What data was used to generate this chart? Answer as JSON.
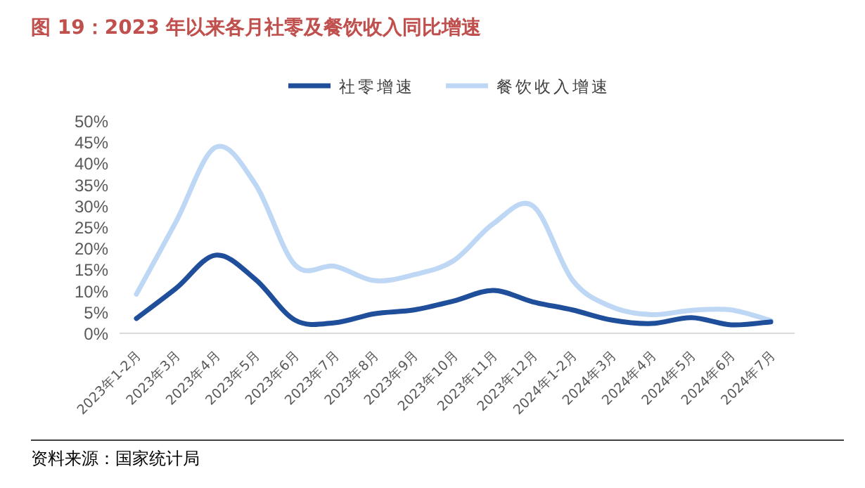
{
  "chart_data": {
    "type": "line",
    "title": "图 19：2023 年以来各月社零及餐饮收入同比增速",
    "categories": [
      "2023年1-2月",
      "2023年3月",
      "2023年4月",
      "2023年5月",
      "2023年6月",
      "2023年7月",
      "2023年8月",
      "2023年9月",
      "2023年10月",
      "2023年11月",
      "2023年12月",
      "2024年1-2月",
      "2024年3月",
      "2024年4月",
      "2024年5月",
      "2024年6月",
      "2024年7月"
    ],
    "series": [
      {
        "name": "社零增速",
        "color": "#1f4e9a",
        "values": [
          3.5,
          10.6,
          18.4,
          12.7,
          3.1,
          2.5,
          4.6,
          5.5,
          7.6,
          10.1,
          7.4,
          5.5,
          3.1,
          2.3,
          3.7,
          2.0,
          2.7
        ]
      },
      {
        "name": "餐饮收入增速",
        "color": "#bdd7f5",
        "values": [
          9.2,
          26.3,
          43.8,
          35.1,
          16.1,
          15.8,
          12.4,
          13.8,
          17.1,
          25.8,
          30.0,
          12.5,
          6.2,
          4.4,
          5.4,
          5.5,
          3.0
        ]
      }
    ],
    "ylim": [
      0,
      50
    ],
    "yticks": [
      {
        "value": 0,
        "label": "0%"
      },
      {
        "value": 5,
        "label": "5%"
      },
      {
        "value": 10,
        "label": "10%"
      },
      {
        "value": 15,
        "label": "15%"
      },
      {
        "value": 20,
        "label": "20%"
      },
      {
        "value": 25,
        "label": "25%"
      },
      {
        "value": 30,
        "label": "30%"
      },
      {
        "value": 35,
        "label": "35%"
      },
      {
        "value": 40,
        "label": "40%"
      },
      {
        "value": 45,
        "label": "45%"
      },
      {
        "value": 50,
        "label": "50%"
      }
    ],
    "legend": "top",
    "line_style": "solid",
    "annotations": [
      "资料来源：国家统计局"
    ]
  }
}
